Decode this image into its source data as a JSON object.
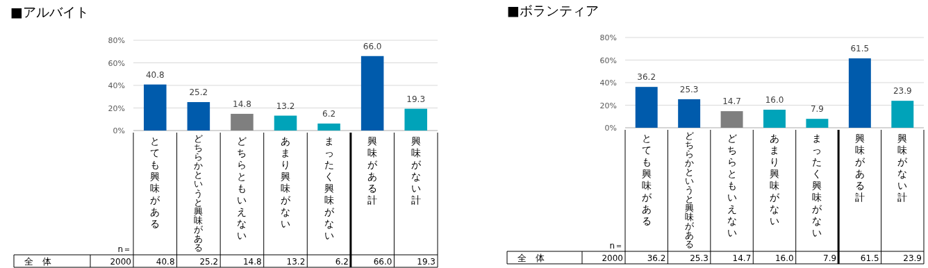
{
  "chart_data": [
    {
      "type": "bar",
      "title": "■アルバイト",
      "categories": [
        "とても興味がある",
        "どちらかというと興味がある",
        "どちらともいえない",
        "あまり興味がない",
        "まったく興味がない",
        "興味がある計",
        "興味がない計"
      ],
      "values": [
        40.8,
        25.2,
        14.8,
        13.2,
        6.2,
        66.0,
        19.3
      ],
      "colors": [
        "#005bac",
        "#005bac",
        "#7f7f7f",
        "#00a3b9",
        "#00a3b9",
        "#005bac",
        "#00a3b9"
      ],
      "ylim": [
        0,
        80
      ],
      "yticks": [
        {
          "value": 0,
          "label": "0%"
        },
        {
          "value": 20,
          "label": "20%"
        },
        {
          "value": 40,
          "label": "40%"
        },
        {
          "value": 60,
          "label": "60%"
        },
        {
          "value": 80,
          "label": "80%"
        }
      ],
      "value_labels": [
        "40.8",
        "25.2",
        "14.8",
        "13.2",
        "6.2",
        "66.0",
        "19.3"
      ],
      "grid": "y",
      "data_labels": true,
      "annotations": [
        "n＝",
        "全　体",
        "2000"
      ]
    },
    {
      "type": "bar",
      "title": "■ボランティア",
      "categories": [
        "とても興味がある",
        "どちらかというと興味がある",
        "どちらともいえない",
        "あまり興味がない",
        "まったく興味がない",
        "興味がある計",
        "興味がない計"
      ],
      "values": [
        36.2,
        25.3,
        14.7,
        16.0,
        7.9,
        61.5,
        23.9
      ],
      "colors": [
        "#005bac",
        "#005bac",
        "#7f7f7f",
        "#00a3b9",
        "#00a3b9",
        "#005bac",
        "#00a3b9"
      ],
      "ylim": [
        0,
        80
      ],
      "yticks": [
        {
          "value": 0,
          "label": "0%"
        },
        {
          "value": 20,
          "label": "20%"
        },
        {
          "value": 40,
          "label": "40%"
        },
        {
          "value": 60,
          "label": "60%"
        },
        {
          "value": 80,
          "label": "80%"
        }
      ],
      "value_labels": [
        "36.2",
        "25.3",
        "14.7",
        "16.0",
        "7.9",
        "61.5",
        "23.9"
      ],
      "grid": "y",
      "data_labels": true,
      "annotations": [
        "n＝",
        "全　体",
        "2000"
      ]
    }
  ]
}
